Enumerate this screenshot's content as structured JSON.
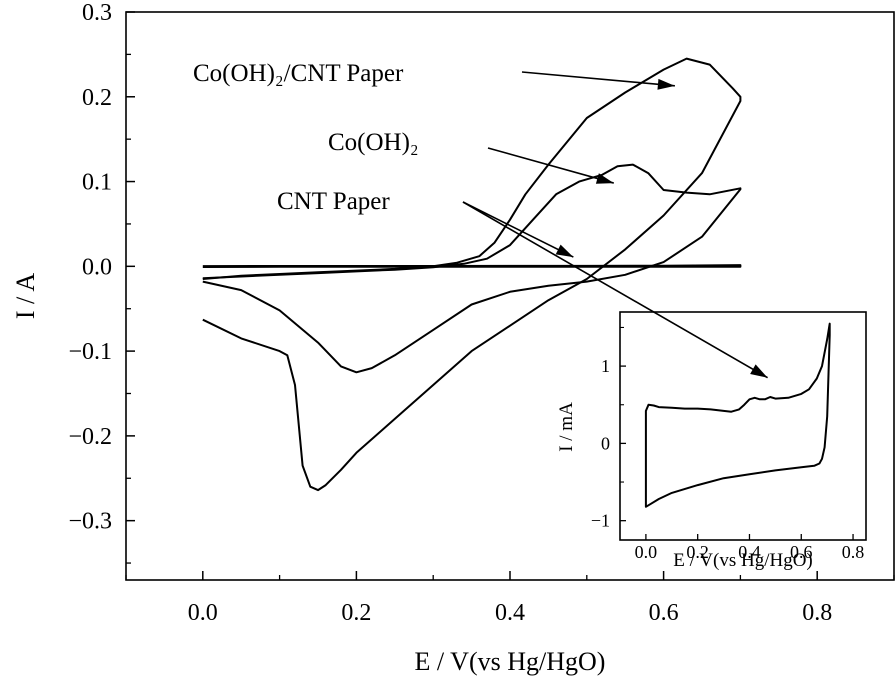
{
  "chart_data": [
    {
      "type": "line",
      "xlabel": "E / V(vs Hg/HgO)",
      "ylabel": "I / A",
      "xlim": [
        -0.1,
        0.9
      ],
      "ylim": [
        -0.37,
        0.3
      ],
      "xticks": [
        "0.0",
        "0.2",
        "0.4",
        "0.6",
        "0.8"
      ],
      "yticks": [
        "0.3",
        "0.2",
        "0.1",
        "0.0",
        "−0.1",
        "−0.2",
        "−0.3"
      ],
      "grid": false,
      "annotations": [
        {
          "label": "Co(OH)₂/CNT Paper",
          "points_to_x": 0.56,
          "points_to_y": 0.22
        },
        {
          "label": "Co(OH)₂",
          "points_to_x": 0.47,
          "points_to_y": 0.11
        },
        {
          "label": "CNT Paper",
          "points_to_x": 0.42,
          "points_to_y": 0.005
        }
      ],
      "series": [
        {
          "key": "cocnt",
          "x": [
            0.0,
            0.05,
            0.1,
            0.15,
            0.2,
            0.25,
            0.3,
            0.33,
            0.36,
            0.38,
            0.4,
            0.42,
            0.45,
            0.5,
            0.55,
            0.6,
            0.63,
            0.66,
            0.69,
            0.7,
            0.7,
            0.65,
            0.6,
            0.55,
            0.5,
            0.45,
            0.4,
            0.35,
            0.3,
            0.25,
            0.2,
            0.18,
            0.16,
            0.15,
            0.14,
            0.13,
            0.12,
            0.11,
            0.1,
            0.05,
            0.0
          ],
          "y": [
            -0.015,
            -0.011,
            -0.009,
            -0.007,
            -0.005,
            -0.003,
            0.0,
            0.004,
            0.012,
            0.028,
            0.055,
            0.085,
            0.12,
            0.175,
            0.205,
            0.232,
            0.245,
            0.238,
            0.21,
            0.2,
            0.195,
            0.11,
            0.06,
            0.02,
            -0.015,
            -0.04,
            -0.07,
            -0.1,
            -0.14,
            -0.18,
            -0.22,
            -0.24,
            -0.258,
            -0.264,
            -0.26,
            -0.235,
            -0.14,
            -0.105,
            -0.1,
            -0.085,
            -0.063
          ]
        },
        {
          "key": "coh2",
          "x": [
            0.0,
            0.05,
            0.1,
            0.15,
            0.2,
            0.25,
            0.3,
            0.34,
            0.37,
            0.4,
            0.43,
            0.46,
            0.49,
            0.52,
            0.54,
            0.56,
            0.58,
            0.6,
            0.63,
            0.66,
            0.7,
            0.7,
            0.65,
            0.6,
            0.55,
            0.5,
            0.45,
            0.4,
            0.35,
            0.3,
            0.25,
            0.22,
            0.2,
            0.18,
            0.15,
            0.1,
            0.05,
            0.0
          ],
          "y": [
            -0.014,
            -0.012,
            -0.01,
            -0.008,
            -0.006,
            -0.004,
            -0.001,
            0.003,
            0.009,
            0.025,
            0.055,
            0.085,
            0.1,
            0.108,
            0.118,
            0.12,
            0.11,
            0.09,
            0.087,
            0.085,
            0.092,
            0.091,
            0.035,
            0.005,
            -0.01,
            -0.018,
            -0.023,
            -0.03,
            -0.045,
            -0.075,
            -0.105,
            -0.12,
            -0.125,
            -0.118,
            -0.09,
            -0.052,
            -0.028,
            -0.018
          ]
        },
        {
          "key": "cnt",
          "x": [
            0.0,
            0.1,
            0.2,
            0.3,
            0.4,
            0.5,
            0.6,
            0.7,
            0.7,
            0.6,
            0.5,
            0.4,
            0.3,
            0.2,
            0.1,
            0.0
          ],
          "y": [
            0.0003,
            0.0004,
            0.0004,
            0.0004,
            0.0005,
            0.0005,
            0.0007,
            0.0014,
            -0.0004,
            -0.0004,
            -0.0004,
            -0.0004,
            -0.0004,
            -0.0005,
            -0.0006,
            -0.0008
          ]
        }
      ]
    },
    {
      "type": "line",
      "xlabel": "E / V(vs Hg/HgO)",
      "ylabel": "I / mA",
      "xlim": [
        -0.1,
        0.85
      ],
      "ylim": [
        -1.25,
        1.7
      ],
      "xticks": [
        "0.0",
        "0.2",
        "0.4",
        "0.6",
        "0.8"
      ],
      "yticks": [
        "1",
        "0",
        "−1"
      ],
      "grid": false,
      "series": [
        {
          "key": "cnt-inset",
          "x": [
            0.0,
            0.0,
            0.01,
            0.03,
            0.05,
            0.1,
            0.15,
            0.2,
            0.25,
            0.3,
            0.33,
            0.36,
            0.38,
            0.4,
            0.42,
            0.44,
            0.46,
            0.48,
            0.5,
            0.55,
            0.6,
            0.63,
            0.66,
            0.68,
            0.7,
            0.71,
            0.71,
            0.7,
            0.69,
            0.68,
            0.67,
            0.65,
            0.6,
            0.5,
            0.4,
            0.3,
            0.2,
            0.1,
            0.05,
            0.02,
            0.0,
            0.0
          ],
          "y": [
            0.1,
            0.42,
            0.5,
            0.49,
            0.47,
            0.46,
            0.45,
            0.45,
            0.44,
            0.42,
            0.41,
            0.44,
            0.5,
            0.57,
            0.59,
            0.57,
            0.57,
            0.6,
            0.58,
            0.59,
            0.64,
            0.7,
            0.84,
            1.0,
            1.35,
            1.55,
            1.4,
            0.35,
            -0.05,
            -0.2,
            -0.26,
            -0.29,
            -0.31,
            -0.35,
            -0.4,
            -0.45,
            -0.54,
            -0.64,
            -0.72,
            -0.78,
            -0.82,
            0.1
          ]
        }
      ]
    }
  ]
}
